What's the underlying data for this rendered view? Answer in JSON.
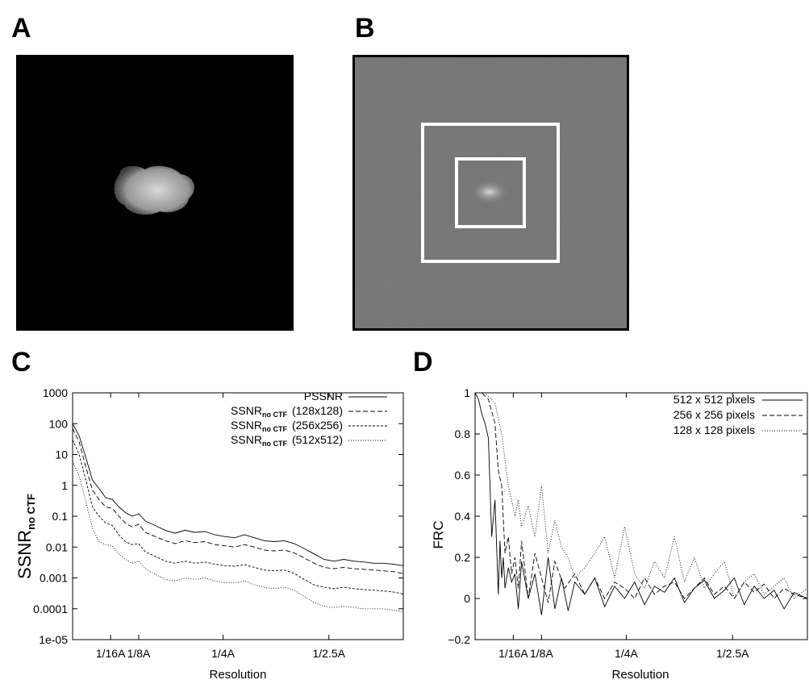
{
  "panels": {
    "a": {
      "letter": "A"
    },
    "b": {
      "letter": "B"
    },
    "c": {
      "letter": "C"
    },
    "d": {
      "letter": "D"
    }
  },
  "colors": {
    "line": "#000000",
    "noise_bg": "#6e6e6e",
    "box": "#ffffff",
    "particle": "#d8d8d8"
  },
  "chart_data": [
    {
      "panel": "C",
      "type": "line",
      "yscale": "log",
      "title": "",
      "xlabel": "Resolution",
      "ylabel": "SSNRno CTF",
      "ylabel_main": "SSNR",
      "ylabel_sub": "no CTF",
      "xlim": [
        0,
        1
      ],
      "ylim": [
        1e-05,
        1000
      ],
      "xticks": [
        {
          "label": "1/16A",
          "value": 0.115
        },
        {
          "label": "1/8A",
          "value": 0.2
        },
        {
          "label": "1/4A",
          "value": 0.455
        },
        {
          "label": "1/2.5A",
          "value": 0.775
        }
      ],
      "yticks": [
        {
          "label": "1000",
          "value": 1000
        },
        {
          "label": "100",
          "value": 100
        },
        {
          "label": "10",
          "value": 10
        },
        {
          "label": "1",
          "value": 1
        },
        {
          "label": "0.1",
          "value": 0.1
        },
        {
          "label": "0.01",
          "value": 0.01
        },
        {
          "label": "0.001",
          "value": 0.001
        },
        {
          "label": "0.0001",
          "value": 0.0001
        },
        {
          "label": "1e-05",
          "value": 1e-05
        }
      ],
      "legend_position": "top-right",
      "series": [
        {
          "name": "PSSNR",
          "dash": "solid",
          "x": [
            0.0,
            0.02,
            0.04,
            0.06,
            0.08,
            0.1,
            0.12,
            0.14,
            0.16,
            0.18,
            0.2,
            0.22,
            0.25,
            0.28,
            0.31,
            0.34,
            0.37,
            0.4,
            0.43,
            0.46,
            0.49,
            0.52,
            0.55,
            0.58,
            0.61,
            0.64,
            0.67,
            0.7,
            0.73,
            0.76,
            0.79,
            0.82,
            0.85,
            0.88,
            0.91,
            0.94,
            0.97,
            1.0
          ],
          "y": [
            100,
            40,
            8,
            1.5,
            0.8,
            0.4,
            0.35,
            0.2,
            0.13,
            0.1,
            0.12,
            0.07,
            0.05,
            0.035,
            0.028,
            0.035,
            0.03,
            0.032,
            0.025,
            0.022,
            0.02,
            0.025,
            0.02,
            0.016,
            0.015,
            0.016,
            0.013,
            0.009,
            0.006,
            0.004,
            0.0035,
            0.004,
            0.0035,
            0.0033,
            0.003,
            0.003,
            0.0028,
            0.0025
          ]
        },
        {
          "label_main": "SSNR",
          "label_sub": "no CTF",
          "label_suffix": "(128x128)",
          "dash": "6,3",
          "x": [
            0.0,
            0.02,
            0.04,
            0.06,
            0.08,
            0.1,
            0.12,
            0.14,
            0.16,
            0.18,
            0.2,
            0.22,
            0.25,
            0.28,
            0.31,
            0.34,
            0.37,
            0.4,
            0.43,
            0.46,
            0.49,
            0.52,
            0.55,
            0.58,
            0.61,
            0.64,
            0.67,
            0.7,
            0.73,
            0.76,
            0.79,
            0.82,
            0.85,
            0.88,
            0.91,
            0.94,
            0.97,
            1.0
          ],
          "y": [
            70,
            25,
            4,
            0.7,
            0.35,
            0.2,
            0.18,
            0.1,
            0.06,
            0.045,
            0.055,
            0.03,
            0.022,
            0.016,
            0.013,
            0.016,
            0.014,
            0.015,
            0.012,
            0.011,
            0.01,
            0.012,
            0.01,
            0.008,
            0.0075,
            0.008,
            0.0065,
            0.0045,
            0.003,
            0.0022,
            0.002,
            0.0022,
            0.002,
            0.0019,
            0.0018,
            0.0017,
            0.0016,
            0.0014
          ]
        },
        {
          "label_main": "SSNR",
          "label_sub": "no CTF",
          "label_suffix": "(256x256)",
          "dash": "3,2",
          "x": [
            0.0,
            0.02,
            0.04,
            0.06,
            0.08,
            0.1,
            0.12,
            0.14,
            0.16,
            0.18,
            0.2,
            0.22,
            0.25,
            0.28,
            0.31,
            0.34,
            0.37,
            0.4,
            0.43,
            0.46,
            0.49,
            0.52,
            0.55,
            0.58,
            0.61,
            0.64,
            0.67,
            0.7,
            0.73,
            0.76,
            0.79,
            0.82,
            0.85,
            0.88,
            0.91,
            0.94,
            0.97,
            1.0
          ],
          "y": [
            30,
            10,
            1.5,
            0.2,
            0.1,
            0.06,
            0.05,
            0.025,
            0.015,
            0.012,
            0.013,
            0.007,
            0.005,
            0.0035,
            0.003,
            0.0035,
            0.003,
            0.0033,
            0.0028,
            0.0025,
            0.0024,
            0.0027,
            0.0022,
            0.0018,
            0.0017,
            0.0018,
            0.0014,
            0.0009,
            0.0006,
            0.0005,
            0.00045,
            0.0005,
            0.00045,
            0.00042,
            0.0004,
            0.00038,
            0.00035,
            0.0003
          ]
        },
        {
          "label_main": "SSNR",
          "label_sub": "no CTF",
          "label_suffix": "(512x512)",
          "dash": "1,2",
          "x": [
            0.0,
            0.02,
            0.04,
            0.06,
            0.08,
            0.1,
            0.12,
            0.14,
            0.16,
            0.18,
            0.2,
            0.22,
            0.25,
            0.28,
            0.31,
            0.34,
            0.37,
            0.4,
            0.43,
            0.46,
            0.49,
            0.52,
            0.55,
            0.58,
            0.61,
            0.64,
            0.67,
            0.7,
            0.73,
            0.76,
            0.79,
            0.82,
            0.85,
            0.88,
            0.91,
            0.94,
            0.97,
            1.0
          ],
          "y": [
            6,
            2,
            0.3,
            0.04,
            0.015,
            0.012,
            0.011,
            0.006,
            0.004,
            0.003,
            0.0035,
            0.002,
            0.0013,
            0.0009,
            0.0008,
            0.001,
            0.0009,
            0.001,
            0.0008,
            0.0007,
            0.0007,
            0.0008,
            0.0006,
            0.0005,
            0.00045,
            0.0005,
            0.0004,
            0.00025,
            0.00016,
            0.00012,
            0.00011,
            0.00012,
            0.00011,
            0.0001,
            0.0001,
            0.0001,
            9e-05,
            8e-05
          ]
        }
      ]
    },
    {
      "panel": "D",
      "type": "line",
      "title": "",
      "xlabel": "Resolution",
      "ylabel": "FRC",
      "xlim": [
        0,
        1
      ],
      "ylim": [
        -0.2,
        1
      ],
      "xticks": [
        {
          "label": "1/16A",
          "value": 0.115
        },
        {
          "label": "1/8A",
          "value": 0.2
        },
        {
          "label": "1/4A",
          "value": 0.455
        },
        {
          "label": "1/2.5A",
          "value": 0.775
        }
      ],
      "yticks": [
        {
          "label": "1",
          "value": 1
        },
        {
          "label": "0.8",
          "value": 0.8
        },
        {
          "label": "0.6",
          "value": 0.6
        },
        {
          "label": "0.4",
          "value": 0.4
        },
        {
          "label": "0.2",
          "value": 0.2
        },
        {
          "label": "0",
          "value": 0
        },
        {
          "label": "−0.2",
          "value": -0.2
        }
      ],
      "legend_position": "top-right",
      "series": [
        {
          "name": "512 x 512 pixels",
          "dash": "solid",
          "x": [
            0.0,
            0.01,
            0.02,
            0.03,
            0.04,
            0.05,
            0.06,
            0.07,
            0.075,
            0.08,
            0.085,
            0.09,
            0.1,
            0.11,
            0.12,
            0.13,
            0.14,
            0.16,
            0.18,
            0.2,
            0.22,
            0.24,
            0.26,
            0.28,
            0.3,
            0.33,
            0.36,
            0.39,
            0.42,
            0.45,
            0.48,
            0.51,
            0.54,
            0.57,
            0.6,
            0.63,
            0.66,
            0.69,
            0.72,
            0.75,
            0.78,
            0.81,
            0.84,
            0.87,
            0.9,
            0.93,
            0.96,
            1.0
          ],
          "y": [
            1.0,
            0.97,
            0.9,
            0.85,
            0.78,
            0.3,
            0.48,
            0.02,
            0.28,
            0.1,
            0.2,
            0.05,
            0.15,
            0.08,
            0.12,
            -0.05,
            0.18,
            0.0,
            0.12,
            -0.08,
            0.2,
            -0.05,
            0.1,
            -0.06,
            0.08,
            0.02,
            0.1,
            -0.04,
            0.06,
            0.0,
            0.08,
            -0.03,
            0.06,
            0.03,
            0.1,
            -0.02,
            0.05,
            0.09,
            0.0,
            0.04,
            0.1,
            -0.03,
            0.06,
            0.0,
            0.04,
            -0.05,
            0.03,
            0.0
          ]
        },
        {
          "name": "256 x 256 pixels",
          "dash": "6,3",
          "x": [
            0.0,
            0.02,
            0.04,
            0.06,
            0.07,
            0.08,
            0.09,
            0.1,
            0.11,
            0.12,
            0.13,
            0.14,
            0.16,
            0.18,
            0.2,
            0.22,
            0.24,
            0.27,
            0.3,
            0.33,
            0.36,
            0.39,
            0.42,
            0.45,
            0.48,
            0.51,
            0.54,
            0.57,
            0.6,
            0.63,
            0.66,
            0.69,
            0.72,
            0.75,
            0.78,
            0.81,
            0.84,
            0.87,
            0.9,
            0.93,
            0.96,
            1.0
          ],
          "y": [
            1.0,
            1.0,
            0.97,
            0.85,
            0.62,
            0.55,
            0.22,
            0.3,
            0.12,
            0.2,
            0.05,
            0.28,
            0.0,
            0.22,
            0.1,
            -0.02,
            0.18,
            0.05,
            0.12,
            0.02,
            0.1,
            0.0,
            0.08,
            0.05,
            0.0,
            0.1,
            0.02,
            0.06,
            0.08,
            0.0,
            0.05,
            0.1,
            0.02,
            0.06,
            0.0,
            0.08,
            0.03,
            0.07,
            0.0,
            0.05,
            0.02,
            0.0
          ]
        },
        {
          "name": "128 x 128 pixels",
          "dash": "1,2",
          "x": [
            0.0,
            0.03,
            0.06,
            0.08,
            0.1,
            0.12,
            0.13,
            0.14,
            0.16,
            0.18,
            0.2,
            0.22,
            0.24,
            0.26,
            0.28,
            0.3,
            0.33,
            0.36,
            0.39,
            0.42,
            0.45,
            0.48,
            0.51,
            0.54,
            0.57,
            0.6,
            0.63,
            0.66,
            0.69,
            0.72,
            0.75,
            0.78,
            0.81,
            0.84,
            0.87,
            0.9,
            0.93,
            0.96,
            1.0
          ],
          "y": [
            1.0,
            1.0,
            0.95,
            0.8,
            0.55,
            0.4,
            0.48,
            0.35,
            0.45,
            0.3,
            0.55,
            0.22,
            0.38,
            0.25,
            0.2,
            0.1,
            0.15,
            0.22,
            0.3,
            0.1,
            0.35,
            0.12,
            0.05,
            0.18,
            0.1,
            0.3,
            0.08,
            0.2,
            0.05,
            0.12,
            0.18,
            0.0,
            0.08,
            0.12,
            0.02,
            0.06,
            0.1,
            0.0,
            0.05
          ]
        }
      ]
    }
  ]
}
